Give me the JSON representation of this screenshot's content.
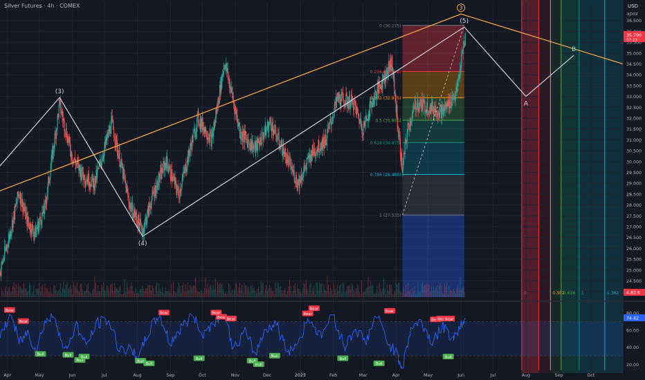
{
  "header": {
    "title": "Silver Futures · 4h · COMEX",
    "currency": "USD",
    "author": "apoz"
  },
  "price_tag": {
    "value": "35.790",
    "countdown": "07:23",
    "color": "#f23645"
  },
  "volume_tag": {
    "value": "4.83 K",
    "color": "#f23645"
  },
  "rsi_tag": {
    "value": "74.42",
    "color": "#2962ff"
  },
  "colors": {
    "background": "#141823",
    "grid": "#1f2433",
    "up": "#26a69a",
    "down": "#ef5350",
    "trendline": "#f7a440",
    "wave": "#d1d4dc",
    "rsi": "#2962ff",
    "bear_label": "#f23645",
    "bull_label": "#4caf50"
  },
  "chart_data": [
    {
      "type": "candlestick",
      "title": "Silver Futures · 4h · COMEX",
      "x_axis": {
        "type": "date",
        "range": [
          "2024-03-25",
          "2025-10-31"
        ],
        "tick_labels": [
          {
            "date": "2024-04-01",
            "label": "Apr"
          },
          {
            "date": "2024-05-01",
            "label": "May"
          },
          {
            "date": "2024-06-01",
            "label": "Jun"
          },
          {
            "date": "2024-07-01",
            "label": "Jul"
          },
          {
            "date": "2024-08-01",
            "label": "Aug"
          },
          {
            "date": "2024-09-01",
            "label": "Sep"
          },
          {
            "date": "2024-10-01",
            "label": "Oct"
          },
          {
            "date": "2024-11-01",
            "label": "Nov"
          },
          {
            "date": "2024-12-01",
            "label": "Dec"
          },
          {
            "date": "2025-01-01",
            "label": "2025"
          },
          {
            "date": "2025-02-01",
            "label": "Feb"
          },
          {
            "date": "2025-03-01",
            "label": "Mar"
          },
          {
            "date": "2025-04-01",
            "label": "Apr"
          },
          {
            "date": "2025-05-01",
            "label": "May"
          },
          {
            "date": "2025-06-01",
            "label": "Jun"
          },
          {
            "date": "2025-07-01",
            "label": "Jul"
          },
          {
            "date": "2025-08-01",
            "label": "Aug"
          },
          {
            "date": "2025-09-01",
            "label": "Sep"
          },
          {
            "date": "2025-10-01",
            "label": "Oct"
          }
        ]
      },
      "y_axis": {
        "range": [
          23.75,
          37.0
        ],
        "ticks": [
          "24.000",
          "24.500",
          "25.000",
          "25.500",
          "26.000",
          "26.500",
          "27.000",
          "27.500",
          "28.000",
          "28.500",
          "29.000",
          "29.500",
          "30.000",
          "30.500",
          "31.000",
          "31.500",
          "32.000",
          "32.500",
          "33.000",
          "33.500",
          "34.000",
          "34.500",
          "35.000",
          "35.500",
          "36.000",
          "36.500"
        ]
      },
      "price_path": [
        {
          "x": "2024-03-25",
          "y": 24.9
        },
        {
          "x": "2024-04-03",
          "y": 26.6
        },
        {
          "x": "2024-04-12",
          "y": 28.6
        },
        {
          "x": "2024-04-20",
          "y": 27.2
        },
        {
          "x": "2024-04-27",
          "y": 26.7
        },
        {
          "x": "2024-05-06",
          "y": 27.8
        },
        {
          "x": "2024-05-20",
          "y": 32.6
        },
        {
          "x": "2024-06-01",
          "y": 30.2
        },
        {
          "x": "2024-06-12",
          "y": 29.3
        },
        {
          "x": "2024-06-22",
          "y": 29.0
        },
        {
          "x": "2024-07-08",
          "y": 31.8
        },
        {
          "x": "2024-07-25",
          "y": 28.0
        },
        {
          "x": "2024-08-06",
          "y": 26.8
        },
        {
          "x": "2024-08-16",
          "y": 28.5
        },
        {
          "x": "2024-08-28",
          "y": 30.0
        },
        {
          "x": "2024-09-09",
          "y": 28.5
        },
        {
          "x": "2024-09-27",
          "y": 32.0
        },
        {
          "x": "2024-10-10",
          "y": 31.0
        },
        {
          "x": "2024-10-22",
          "y": 34.6
        },
        {
          "x": "2024-11-06",
          "y": 31.3
        },
        {
          "x": "2024-11-20",
          "y": 30.6
        },
        {
          "x": "2024-12-04",
          "y": 31.8
        },
        {
          "x": "2024-12-16",
          "y": 30.5
        },
        {
          "x": "2024-12-30",
          "y": 29.0
        },
        {
          "x": "2025-01-12",
          "y": 30.4
        },
        {
          "x": "2025-01-25",
          "y": 31.0
        },
        {
          "x": "2025-02-05",
          "y": 32.9
        },
        {
          "x": "2025-02-20",
          "y": 32.7
        },
        {
          "x": "2025-03-01",
          "y": 31.5
        },
        {
          "x": "2025-03-10",
          "y": 32.8
        },
        {
          "x": "2025-03-28",
          "y": 34.6
        },
        {
          "x": "2025-04-03",
          "y": 31.5
        },
        {
          "x": "2025-04-07",
          "y": 29.6
        },
        {
          "x": "2025-04-12",
          "y": 31.5
        },
        {
          "x": "2025-04-20",
          "y": 32.7
        },
        {
          "x": "2025-05-01",
          "y": 32.5
        },
        {
          "x": "2025-05-15",
          "y": 32.3
        },
        {
          "x": "2025-05-28",
          "y": 33.2
        },
        {
          "x": "2025-06-05",
          "y": 35.8
        }
      ],
      "wave_path": [
        {
          "x": "2024-03-25",
          "y": 29.8
        },
        {
          "x": "2024-05-20",
          "y": 32.95,
          "label": "(3)"
        },
        {
          "x": "2024-08-06",
          "y": 26.55,
          "label": "(4)"
        },
        {
          "x": "2025-06-04",
          "y": 36.2,
          "label": "(5)"
        },
        {
          "x": "2025-08-01",
          "y": 33.0,
          "label": "A"
        },
        {
          "x": "2025-09-15",
          "y": 34.9,
          "label": "B"
        }
      ],
      "trend_line": [
        {
          "x": "2024-03-25",
          "y": 28.65
        },
        {
          "x": "2025-06-01",
          "y": 36.8,
          "label": "3"
        },
        {
          "x": "2025-10-31",
          "y": 34.5
        }
      ],
      "fibonacci": {
        "x_range": [
          "2025-04-07",
          "2025-06-04"
        ],
        "levels": [
          {
            "ratio": "0",
            "label": "0 (36.275)",
            "price": 36.275,
            "color": "#787b86"
          },
          {
            "ratio": "0.236",
            "label": "0.236 (34.148)",
            "price": 34.148,
            "color": "#f23645"
          },
          {
            "ratio": "0.382",
            "label": "0.382 (32.935)",
            "price": 32.935,
            "color": "#ff9800"
          },
          {
            "ratio": "0.5",
            "label": "0.5 (31.905)",
            "price": 31.905,
            "color": "#4caf50"
          },
          {
            "ratio": "0.618",
            "label": "0.618 (30.875)",
            "price": 30.875,
            "color": "#089981"
          },
          {
            "ratio": "0.786",
            "label": "0.786 (29.405)",
            "price": 29.405,
            "color": "#00bcd4"
          },
          {
            "ratio": "1",
            "label": "1 (27.535)",
            "price": 27.535,
            "color": "#787b86"
          }
        ]
      },
      "time_fibonacci": [
        {
          "x": "2025-07-28",
          "label": "0",
          "color": "#f23645"
        },
        {
          "x": "2025-08-13",
          "label": "",
          "color": "#f23645"
        },
        {
          "x": "2025-08-24",
          "label": "0.382",
          "color": "#ff9800"
        },
        {
          "x": "2025-09-03",
          "label": "0.618",
          "color": "#4caf50"
        },
        {
          "x": "2025-09-20",
          "label": "1",
          "color": "#089981"
        },
        {
          "x": "2025-10-14",
          "label": "1.382",
          "color": "#00bcd4"
        }
      ]
    },
    {
      "type": "line",
      "title": "",
      "y_axis": {
        "range": [
          13,
          89
        ],
        "ticks": [
          "20.00",
          "40.00",
          "60.00",
          "80.00"
        ]
      },
      "bands": {
        "upper": 70,
        "lower": 30
      },
      "series": [
        {
          "values": [
            {
              "x": "2024-03-25",
              "y": 48
            },
            {
              "x": "2024-04-05",
              "y": 80
            },
            {
              "x": "2024-04-12",
              "y": 45
            },
            {
              "x": "2024-04-20",
              "y": 58
            },
            {
              "x": "2024-04-28",
              "y": 36
            },
            {
              "x": "2024-05-06",
              "y": 70
            },
            {
              "x": "2024-05-16",
              "y": 77
            },
            {
              "x": "2024-05-25",
              "y": 34
            },
            {
              "x": "2024-06-05",
              "y": 66
            },
            {
              "x": "2024-06-14",
              "y": 42
            },
            {
              "x": "2024-06-25",
              "y": 68
            },
            {
              "x": "2024-07-05",
              "y": 72
            },
            {
              "x": "2024-07-15",
              "y": 40
            },
            {
              "x": "2024-07-26",
              "y": 36
            },
            {
              "x": "2024-08-03",
              "y": 28
            },
            {
              "x": "2024-08-12",
              "y": 58
            },
            {
              "x": "2024-08-22",
              "y": 78
            },
            {
              "x": "2024-09-01",
              "y": 45
            },
            {
              "x": "2024-09-10",
              "y": 60
            },
            {
              "x": "2024-09-22",
              "y": 78
            },
            {
              "x": "2024-10-02",
              "y": 55
            },
            {
              "x": "2024-10-12",
              "y": 70
            },
            {
              "x": "2024-10-21",
              "y": 80
            },
            {
              "x": "2024-10-31",
              "y": 38
            },
            {
              "x": "2024-11-10",
              "y": 58
            },
            {
              "x": "2024-11-20",
              "y": 32
            },
            {
              "x": "2024-11-30",
              "y": 62
            },
            {
              "x": "2024-12-10",
              "y": 68
            },
            {
              "x": "2024-12-20",
              "y": 35
            },
            {
              "x": "2024-12-30",
              "y": 45
            },
            {
              "x": "2025-01-10",
              "y": 75
            },
            {
              "x": "2025-01-20",
              "y": 52
            },
            {
              "x": "2025-02-01",
              "y": 80
            },
            {
              "x": "2025-02-12",
              "y": 40
            },
            {
              "x": "2025-02-22",
              "y": 62
            },
            {
              "x": "2025-03-04",
              "y": 46
            },
            {
              "x": "2025-03-14",
              "y": 78
            },
            {
              "x": "2025-03-24",
              "y": 48
            },
            {
              "x": "2025-04-03",
              "y": 30
            },
            {
              "x": "2025-04-07",
              "y": 16
            },
            {
              "x": "2025-04-15",
              "y": 62
            },
            {
              "x": "2025-04-25",
              "y": 70
            },
            {
              "x": "2025-05-05",
              "y": 46
            },
            {
              "x": "2025-05-15",
              "y": 64
            },
            {
              "x": "2025-05-25",
              "y": 50
            },
            {
              "x": "2025-06-01",
              "y": 66
            },
            {
              "x": "2025-06-05",
              "y": 74.42
            }
          ]
        }
      ],
      "signals": [
        {
          "x": "2024-04-03",
          "y": 80,
          "label": "Bear"
        },
        {
          "x": "2024-04-16",
          "y": 67,
          "label": "Bear"
        },
        {
          "x": "2024-05-02",
          "y": 35,
          "label": "Bull"
        },
        {
          "x": "2024-05-28",
          "y": 34,
          "label": "Bull"
        },
        {
          "x": "2024-06-08",
          "y": 28,
          "label": "Bull"
        },
        {
          "x": "2024-06-12",
          "y": 32,
          "label": "Bull"
        },
        {
          "x": "2024-08-04",
          "y": 27,
          "label": "Bull"
        },
        {
          "x": "2024-08-12",
          "y": 24,
          "label": "Bull"
        },
        {
          "x": "2024-08-26",
          "y": 77,
          "label": "Bear"
        },
        {
          "x": "2024-09-28",
          "y": 30,
          "label": "Bull"
        },
        {
          "x": "2024-10-14",
          "y": 77,
          "label": "Bear"
        },
        {
          "x": "2024-10-19",
          "y": 72,
          "label": "Bear"
        },
        {
          "x": "2024-10-28",
          "y": 70,
          "label": "Bear"
        },
        {
          "x": "2024-11-17",
          "y": 27,
          "label": "Bull"
        },
        {
          "x": "2024-11-23",
          "y": 23,
          "label": "Bull"
        },
        {
          "x": "2024-12-08",
          "y": 33,
          "label": "Bull"
        },
        {
          "x": "2025-01-08",
          "y": 76,
          "label": "Bear"
        },
        {
          "x": "2025-01-14",
          "y": 82,
          "label": "Bear"
        },
        {
          "x": "2025-02-10",
          "y": 30,
          "label": "Bull"
        },
        {
          "x": "2025-03-16",
          "y": 24,
          "label": "Bull"
        },
        {
          "x": "2025-03-26",
          "y": 79,
          "label": "Bear"
        },
        {
          "x": "2025-05-08",
          "y": 69,
          "label": "Bear"
        },
        {
          "x": "2025-05-14",
          "y": 70,
          "label": "Bear"
        },
        {
          "x": "2025-05-21",
          "y": 70,
          "label": "Bear"
        },
        {
          "x": "2025-05-20",
          "y": 32,
          "label": "Bull"
        }
      ]
    }
  ]
}
